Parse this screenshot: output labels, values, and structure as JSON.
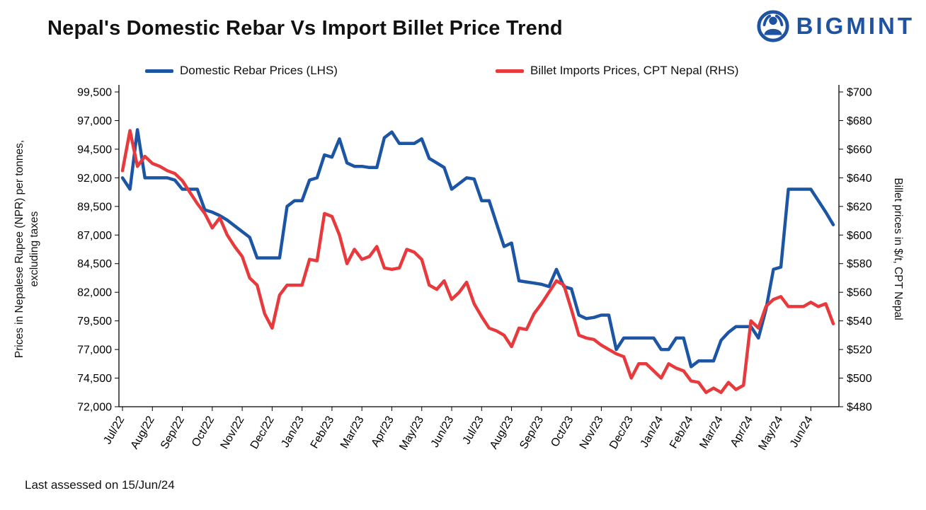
{
  "title": "Nepal's Domestic Rebar Vs Import Billet Price Trend",
  "logo": {
    "text": "BIGMINT",
    "color": "#1d53a0"
  },
  "legend": [
    {
      "label": "Domestic Rebar Prices (LHS)",
      "color": "#1c55a4"
    },
    {
      "label": "Billet Imports Prices, CPT Nepal (RHS)",
      "color": "#e8393c"
    }
  ],
  "footer": "Last assessed on 15/Jun/24",
  "chart_data": {
    "type": "line",
    "title": "Nepal's Domestic Rebar Vs Import Billet Price Trend",
    "grid": false,
    "legend_position": "top",
    "categories": [
      "Jul/22",
      "Aug/22",
      "Sep/22",
      "Oct/22",
      "Nov/22",
      "Dec/22",
      "Jan/23",
      "Feb/23",
      "Mar/23",
      "Apr/23",
      "May/23",
      "Jun/23",
      "Jul/23",
      "Aug/23",
      "Sep/23",
      "Oct/23",
      "Nov/23",
      "Dec/23",
      "Jan/24",
      "Feb/24",
      "Mar/24",
      "Apr/24",
      "May/24",
      "Jun/24"
    ],
    "points_per_month": 4,
    "y_left": {
      "label": "Prices in Nepalese Rupee (NPR) per tonnes, excluding taxes",
      "label_line1": "Prices in Nepalese Rupee (NPR) per tonnes,",
      "label_line2": "excluding taxes",
      "min": 72000,
      "max": 99500,
      "ticks": [
        "99,500",
        "97,000",
        "94,500",
        "92,000",
        "89,500",
        "87,000",
        "84,500",
        "82,000",
        "79,500",
        "77,000",
        "74,500",
        "72,000"
      ]
    },
    "y_right": {
      "label": "Billet prices in $/t, CPT Nepal",
      "min": 480,
      "max": 700,
      "ticks": [
        "$700",
        "$680",
        "$660",
        "$640",
        "$620",
        "$600",
        "$580",
        "$560",
        "$540",
        "$520",
        "$500",
        "$480"
      ]
    },
    "series": [
      {
        "name": "Domestic Rebar Prices (LHS)",
        "axis": "left",
        "color": "#1c55a4",
        "values": [
          92000,
          91000,
          96200,
          92000,
          92000,
          92000,
          92000,
          91800,
          91000,
          91000,
          91000,
          89200,
          89000,
          88700,
          88300,
          87800,
          87300,
          86800,
          85000,
          85000,
          85000,
          85000,
          89500,
          90000,
          90000,
          91800,
          92000,
          94000,
          93800,
          95400,
          93300,
          93000,
          93000,
          92900,
          92900,
          95500,
          96000,
          95000,
          95000,
          95000,
          95400,
          93700,
          93300,
          92900,
          91000,
          91500,
          92000,
          91900,
          90000,
          90000,
          88000,
          86000,
          86300,
          83000,
          82900,
          82800,
          82700,
          82500,
          84000,
          82500,
          82300,
          80000,
          79700,
          79800,
          80000,
          80000,
          77000,
          78000,
          78000,
          78000,
          78000,
          78000,
          77000,
          77000,
          78000,
          78000,
          75500,
          76000,
          76000,
          76000,
          77800,
          78500,
          79000,
          79000,
          79000,
          78000,
          80500,
          84000,
          84200,
          91000,
          91000,
          91000,
          91000,
          90000,
          89000,
          87900
        ]
      },
      {
        "name": "Billet Imports Prices, CPT Nepal (RHS)",
        "axis": "right",
        "color": "#e8393c",
        "values": [
          645,
          673,
          648,
          655,
          650,
          648,
          645,
          643,
          638,
          630,
          622,
          615,
          605,
          612,
          600,
          592,
          585,
          570,
          565,
          545,
          535,
          558,
          565,
          565,
          565,
          583,
          582,
          615,
          613,
          600,
          580,
          590,
          583,
          585,
          592,
          577,
          576,
          577,
          590,
          588,
          583,
          565,
          562,
          568,
          555,
          560,
          567,
          552,
          543,
          535,
          533,
          530,
          522,
          535,
          534,
          545,
          552,
          560,
          568,
          565,
          548,
          530,
          528,
          527,
          523,
          520,
          517,
          515,
          500,
          510,
          510,
          505,
          500,
          510,
          507,
          505,
          498,
          497,
          490,
          493,
          490,
          497,
          492,
          495,
          540,
          535,
          550,
          555,
          557,
          550,
          550,
          550,
          553,
          550,
          552,
          538
        ]
      }
    ]
  }
}
